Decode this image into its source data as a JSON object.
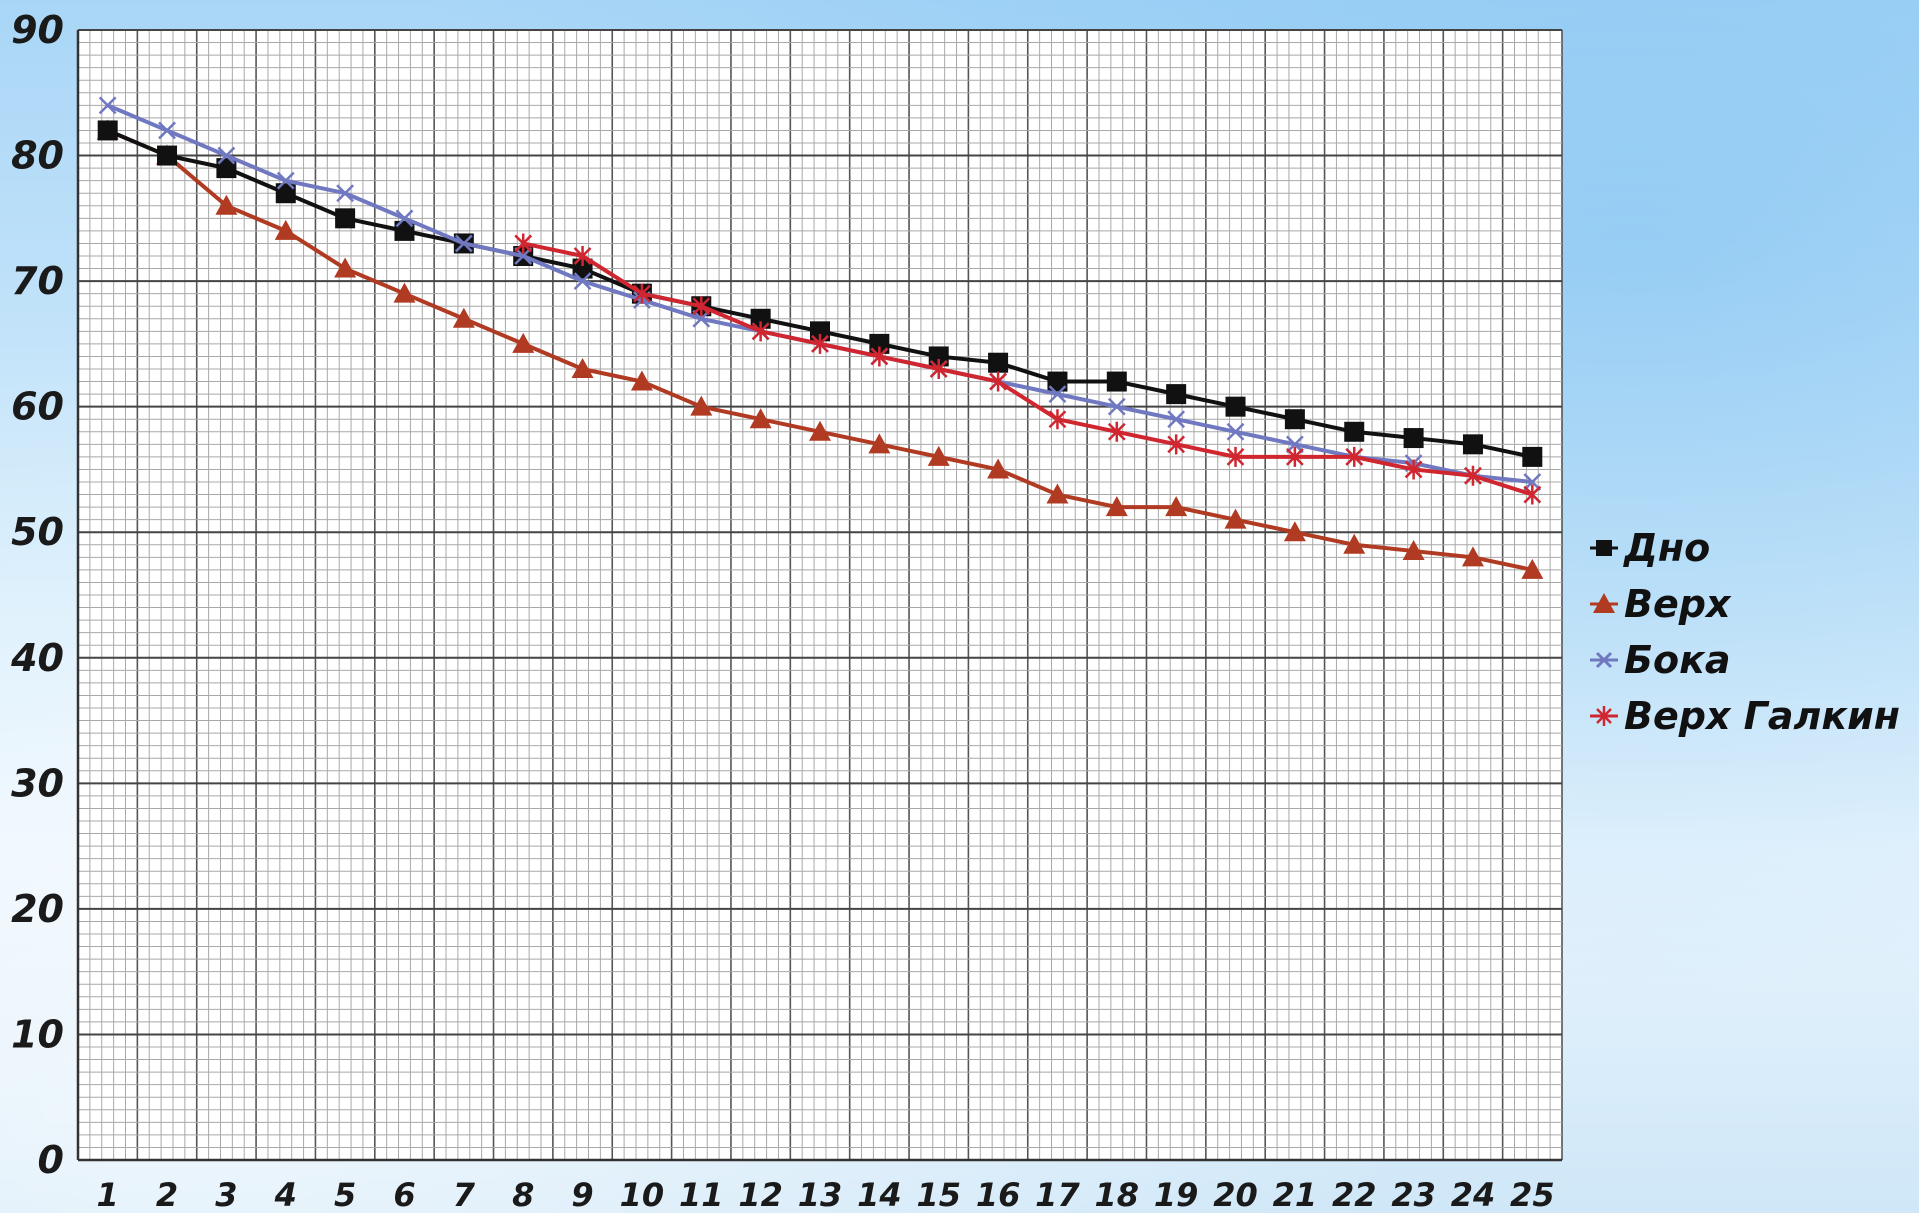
{
  "chart_data": {
    "type": "line",
    "title": "",
    "xlabel": "",
    "ylabel": "",
    "categories": [
      "1",
      "2",
      "3",
      "4",
      "5",
      "6",
      "7",
      "8",
      "9",
      "10",
      "11",
      "12",
      "13",
      "14",
      "15",
      "16",
      "17",
      "18",
      "19",
      "20",
      "21",
      "22",
      "23",
      "24",
      "25"
    ],
    "y_ticks": [
      "0",
      "10",
      "20",
      "30",
      "40",
      "50",
      "60",
      "70",
      "80",
      "90"
    ],
    "ylim": [
      0,
      90
    ],
    "grid": true,
    "legend_position": "right",
    "series": [
      {
        "name": "Дно",
        "color": "#111111",
        "marker": "square",
        "values": [
          82,
          80,
          79,
          77,
          75,
          74,
          73,
          72,
          71,
          69,
          68,
          67,
          66,
          65,
          64,
          63.5,
          62,
          62,
          61,
          60,
          59,
          58,
          57.5,
          57,
          56
        ]
      },
      {
        "name": "Верх",
        "color": "#b03a22",
        "marker": "triangle",
        "values": [
          82,
          80,
          76,
          74,
          71,
          69,
          67,
          65,
          63,
          62,
          60,
          59,
          58,
          57,
          56,
          55,
          53,
          52,
          52,
          51,
          50,
          49,
          48.5,
          48,
          47
        ]
      },
      {
        "name": "Бока",
        "color": "#6f78c0",
        "marker": "x",
        "values": [
          84,
          82,
          80,
          78,
          77,
          75,
          73,
          72,
          70,
          68.5,
          67,
          66,
          65,
          64,
          63,
          62,
          61,
          60,
          59,
          58,
          57,
          56,
          55.5,
          54.5,
          54
        ]
      },
      {
        "name": "Верх Галкин",
        "color": "#d02630",
        "marker": "star",
        "values": [
          null,
          null,
          null,
          null,
          null,
          null,
          null,
          73,
          72,
          69,
          68,
          66,
          65,
          64,
          63,
          62,
          59,
          58,
          57,
          56,
          56,
          56,
          55,
          54.5,
          53
        ]
      }
    ]
  }
}
